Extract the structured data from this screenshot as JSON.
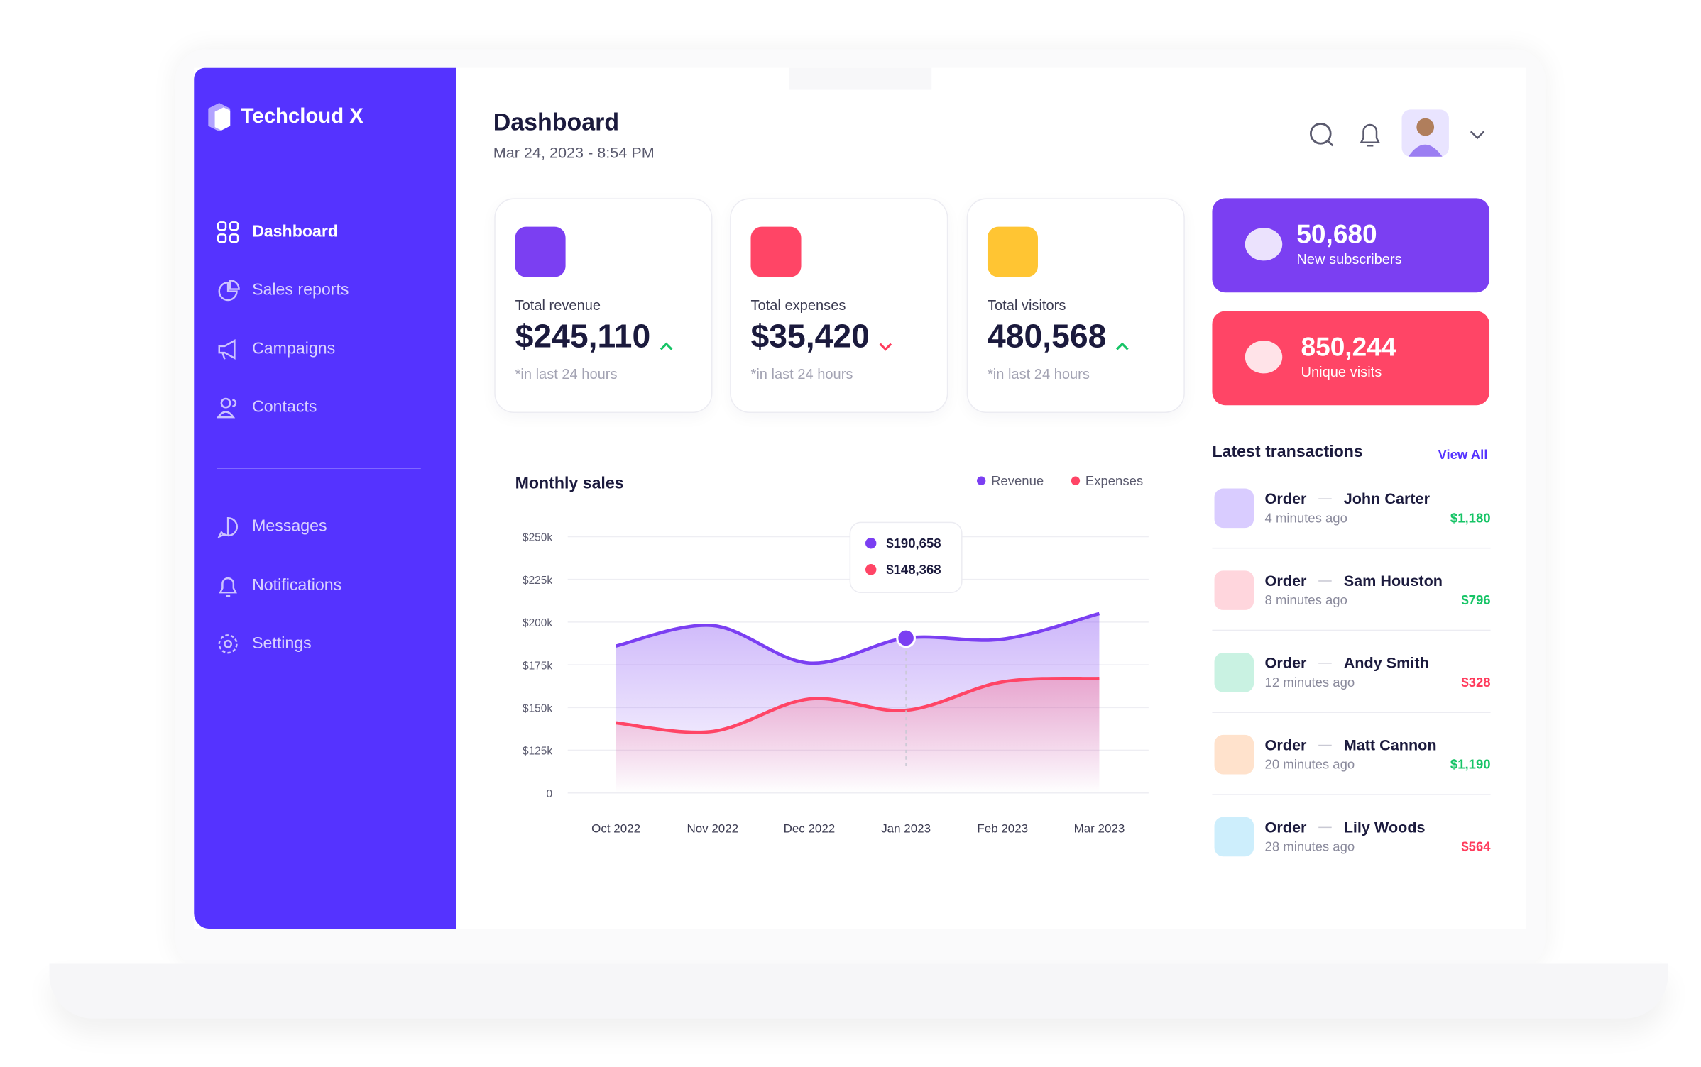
{
  "brand": "Techcloud X",
  "nav": {
    "items": [
      "Dashboard",
      "Sales reports",
      "Campaigns",
      "Contacts"
    ],
    "secondary": [
      "Messages",
      "Notifications",
      "Settings"
    ]
  },
  "header": {
    "title": "Dashboard",
    "date": "Mar 24, 2023 - 8:54 PM"
  },
  "stats": [
    {
      "label": "Total revenue",
      "value": "$245,110",
      "note": "*in last 24 hours",
      "trend": "up",
      "color": "#7b3ff2"
    },
    {
      "label": "Total expenses",
      "value": "$35,420",
      "note": "*in last 24 hours",
      "trend": "down",
      "color": "#ff4566"
    },
    {
      "label": "Total visitors",
      "value": "480,568",
      "note": "*in last 24 hours",
      "trend": "up",
      "color": "#ffc533"
    }
  ],
  "highlights": [
    {
      "value": "50,680",
      "label": "New subscribers",
      "color": "#7b3ff2"
    },
    {
      "value": "850,244",
      "label": "Unique visits",
      "color": "#ff4566"
    }
  ],
  "transactions": {
    "title": "Latest transactions",
    "action": "View All",
    "rows": [
      {
        "label": "Order",
        "name": "John Carter",
        "time": "4 minutes ago",
        "amount": "$1,180",
        "color": "#16c466"
      },
      {
        "label": "Order",
        "name": "Sam Houston",
        "time": "8 minutes ago",
        "amount": "$796",
        "color": "#16c466"
      },
      {
        "label": "Order",
        "name": "Andy Smith",
        "time": "12 minutes ago",
        "amount": "$328",
        "color": "#ff3b5c"
      },
      {
        "label": "Order",
        "name": "Matt Cannon",
        "time": "20 minutes ago",
        "amount": "$1,190",
        "color": "#16c466"
      },
      {
        "label": "Order",
        "name": "Lily Woods",
        "time": "28 minutes ago",
        "amount": "$564",
        "color": "#ff3b5c"
      }
    ]
  },
  "chart_data": {
    "type": "area",
    "title": "Monthly sales",
    "categories": [
      "Oct 2022",
      "Nov 2022",
      "Dec 2022",
      "Jan 2023",
      "Feb 2023",
      "Mar 2023"
    ],
    "series": [
      {
        "name": "Revenue",
        "color": "#7b3ff2",
        "values": [
          186000,
          198000,
          176000,
          190658,
          190000,
          205000
        ],
        "value_labels": [
          null,
          null,
          null,
          "$190,658",
          null,
          null
        ]
      },
      {
        "name": "Expenses",
        "color": "#ff4566",
        "values": [
          141000,
          136000,
          155000,
          148368,
          165000,
          167000
        ],
        "value_labels": [
          null,
          null,
          null,
          "$148,368",
          null,
          null
        ]
      }
    ],
    "ylim": [
      0,
      250000
    ],
    "yticks": [
      0,
      {
        "value": 125000,
        "label": "$125k"
      },
      {
        "value": 150000,
        "label": "$150k"
      },
      {
        "value": 175000,
        "label": "$175k"
      },
      {
        "value": 200000,
        "label": "$200k"
      },
      {
        "value": 225000,
        "label": "$225k"
      },
      {
        "value": 250000,
        "label": "$250k"
      }
    ],
    "grid": true,
    "legend": "top-right"
  }
}
